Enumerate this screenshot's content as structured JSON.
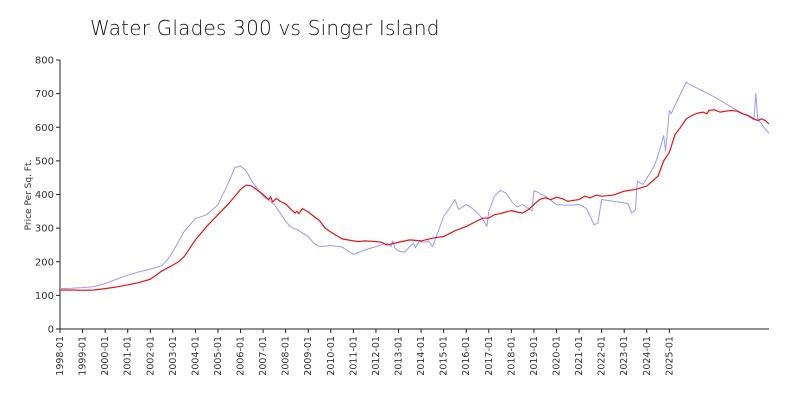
{
  "chart_data": {
    "type": "line",
    "title": "Water Glades 300 vs Singer Island",
    "xlabel": "",
    "ylabel": "Price Per Sq. Ft.",
    "ylim": [
      0,
      800
    ],
    "yticks": [
      0,
      100,
      200,
      300,
      400,
      500,
      600,
      700,
      800
    ],
    "xticks": [
      "1998-01",
      "1999-01",
      "2000-01",
      "2001-01",
      "2002-01",
      "2003-01",
      "2004-01",
      "2005-01",
      "2006-01",
      "2007-01",
      "2008-01",
      "2009-01",
      "2010-01",
      "2011-01",
      "2012-01",
      "2013-01",
      "2014-01",
      "2015-01",
      "2016-01",
      "2017-01",
      "2018-01",
      "2019-01",
      "2020-01",
      "2021-01",
      "2022-01",
      "2023-01",
      "2024-01",
      "2025-01"
    ],
    "grid": false,
    "series": [
      {
        "color": "#9999ff",
        "points": [
          [
            "1998-01",
            120
          ],
          [
            "1998-07",
            121
          ],
          [
            "1999-01",
            123
          ],
          [
            "1999-07",
            126
          ],
          [
            "2000-01",
            135
          ],
          [
            "2000-07",
            148
          ],
          [
            "2001-01",
            160
          ],
          [
            "2001-07",
            170
          ],
          [
            "2002-01",
            178
          ],
          [
            "2002-07",
            188
          ],
          [
            "2002-10",
            205
          ],
          [
            "2003-01",
            230
          ],
          [
            "2003-07",
            290
          ],
          [
            "2004-01",
            328
          ],
          [
            "2004-07",
            340
          ],
          [
            "2005-01",
            370
          ],
          [
            "2005-07",
            440
          ],
          [
            "2005-10",
            480
          ],
          [
            "2006-01",
            485
          ],
          [
            "2006-04",
            470
          ],
          [
            "2006-07",
            440
          ],
          [
            "2007-01",
            395
          ],
          [
            "2007-07",
            370
          ],
          [
            "2008-01",
            320
          ],
          [
            "2008-04",
            302
          ],
          [
            "2008-07",
            296
          ],
          [
            "2009-01",
            275
          ],
          [
            "2009-04",
            255
          ],
          [
            "2009-07",
            245
          ],
          [
            "2010-01",
            248
          ],
          [
            "2010-07",
            244
          ],
          [
            "2010-10",
            232
          ],
          [
            "2011-01",
            222
          ],
          [
            "2011-07",
            235
          ],
          [
            "2012-01",
            245
          ],
          [
            "2012-07",
            255
          ],
          [
            "2012-09",
            245
          ],
          [
            "2012-10",
            262
          ],
          [
            "2012-11",
            242
          ],
          [
            "2013-01",
            232
          ],
          [
            "2013-04",
            228
          ],
          [
            "2013-07",
            245
          ],
          [
            "2013-09",
            255
          ],
          [
            "2013-10",
            242
          ],
          [
            "2013-12",
            260
          ],
          [
            "2014-03",
            258
          ],
          [
            "2014-05",
            262
          ],
          [
            "2014-07",
            245
          ],
          [
            "2014-08",
            258
          ],
          [
            "2015-01",
            335
          ],
          [
            "2015-04",
            358
          ],
          [
            "2015-07",
            385
          ],
          [
            "2015-09",
            355
          ],
          [
            "2016-01",
            370
          ],
          [
            "2016-04",
            360
          ],
          [
            "2016-07",
            345
          ],
          [
            "2016-10",
            325
          ],
          [
            "2016-12",
            305
          ],
          [
            "2017-01",
            350
          ],
          [
            "2017-04",
            395
          ],
          [
            "2017-07",
            412
          ],
          [
            "2017-10",
            405
          ],
          [
            "2018-01",
            380
          ],
          [
            "2018-04",
            363
          ],
          [
            "2018-07",
            370
          ],
          [
            "2018-10",
            358
          ],
          [
            "2018-12",
            352
          ],
          [
            "2019-01",
            412
          ],
          [
            "2019-07",
            395
          ],
          [
            "2019-10",
            382
          ],
          [
            "2020-01",
            370
          ],
          [
            "2020-07",
            368
          ],
          [
            "2021-01",
            370
          ],
          [
            "2021-05",
            358
          ],
          [
            "2021-09",
            310
          ],
          [
            "2021-11",
            315
          ],
          [
            "2022-01",
            385
          ],
          [
            "2022-07",
            380
          ],
          [
            "2023-01",
            375
          ],
          [
            "2023-03",
            372
          ],
          [
            "2023-05",
            345
          ],
          [
            "2023-07",
            355
          ],
          [
            "2023-08",
            440
          ],
          [
            "2023-11",
            430
          ],
          [
            "2024-04",
            475
          ],
          [
            "2024-06",
            500
          ],
          [
            "2024-08",
            535
          ],
          [
            "2024-10",
            575
          ],
          [
            "2024-11",
            530
          ],
          [
            "2025-01",
            650
          ],
          [
            "2025-02",
            640
          ],
          [
            "2025-04",
            665
          ],
          [
            "2025-07",
            700
          ],
          [
            "2025-10",
            735
          ],
          [
            "2025-11",
            730
          ],
          [
            "2026-06",
            710
          ],
          [
            "2027-01",
            690
          ],
          [
            "2027-07",
            670
          ],
          [
            "2028-01",
            650
          ],
          [
            "2028-07",
            632
          ],
          [
            "2028-10",
            622
          ],
          [
            "2028-11",
            700
          ],
          [
            "2028-12",
            625
          ],
          [
            "2029-02",
            610
          ],
          [
            "2029-04",
            595
          ],
          [
            "2029-06",
            582
          ]
        ]
      },
      {
        "color": "#ee1111",
        "points": [
          [
            "1998-01",
            116
          ],
          [
            "1998-07",
            116
          ],
          [
            "1999-01",
            115
          ],
          [
            "1999-07",
            116
          ],
          [
            "2000-01",
            120
          ],
          [
            "2000-07",
            125
          ],
          [
            "2001-01",
            131
          ],
          [
            "2001-07",
            138
          ],
          [
            "2002-01",
            148
          ],
          [
            "2002-04",
            160
          ],
          [
            "2002-07",
            172
          ],
          [
            "2003-01",
            190
          ],
          [
            "2003-04",
            200
          ],
          [
            "2003-07",
            215
          ],
          [
            "2003-10",
            240
          ],
          [
            "2004-01",
            265
          ],
          [
            "2004-07",
            305
          ],
          [
            "2005-01",
            340
          ],
          [
            "2005-07",
            375
          ],
          [
            "2006-01",
            415
          ],
          [
            "2006-04",
            428
          ],
          [
            "2006-07",
            425
          ],
          [
            "2007-01",
            400
          ],
          [
            "2007-04",
            385
          ],
          [
            "2007-05",
            393
          ],
          [
            "2007-06",
            378
          ],
          [
            "2007-08",
            388
          ],
          [
            "2007-10",
            380
          ],
          [
            "2008-01",
            372
          ],
          [
            "2008-04",
            355
          ],
          [
            "2008-06",
            345
          ],
          [
            "2008-07",
            350
          ],
          [
            "2008-08",
            343
          ],
          [
            "2008-10",
            358
          ],
          [
            "2009-01",
            348
          ],
          [
            "2009-04",
            335
          ],
          [
            "2009-07",
            322
          ],
          [
            "2009-10",
            300
          ],
          [
            "2010-01",
            288
          ],
          [
            "2010-07",
            268
          ],
          [
            "2011-01",
            262
          ],
          [
            "2011-04",
            260
          ],
          [
            "2011-07",
            262
          ],
          [
            "2012-01",
            260
          ],
          [
            "2012-04",
            258
          ],
          [
            "2012-06",
            252
          ],
          [
            "2012-07",
            250
          ],
          [
            "2013-01",
            258
          ],
          [
            "2013-07",
            265
          ],
          [
            "2014-01",
            262
          ],
          [
            "2014-07",
            270
          ],
          [
            "2015-01",
            275
          ],
          [
            "2015-07",
            292
          ],
          [
            "2016-01",
            305
          ],
          [
            "2016-07",
            322
          ],
          [
            "2016-10",
            330
          ],
          [
            "2017-01",
            330
          ],
          [
            "2017-04",
            340
          ],
          [
            "2017-07",
            343
          ],
          [
            "2017-10",
            348
          ],
          [
            "2018-01",
            352
          ],
          [
            "2018-04",
            348
          ],
          [
            "2018-07",
            345
          ],
          [
            "2018-10",
            355
          ],
          [
            "2019-01",
            370
          ],
          [
            "2019-04",
            385
          ],
          [
            "2019-07",
            390
          ],
          [
            "2019-10",
            385
          ],
          [
            "2020-01",
            392
          ],
          [
            "2020-04",
            388
          ],
          [
            "2020-07",
            380
          ],
          [
            "2021-01",
            385
          ],
          [
            "2021-04",
            395
          ],
          [
            "2021-07",
            390
          ],
          [
            "2021-10",
            398
          ],
          [
            "2022-01",
            395
          ],
          [
            "2022-07",
            398
          ],
          [
            "2023-01",
            410
          ],
          [
            "2023-07",
            415
          ],
          [
            "2024-01",
            425
          ],
          [
            "2024-04",
            440
          ],
          [
            "2024-07",
            455
          ],
          [
            "2024-10",
            500
          ],
          [
            "2025-01",
            525
          ],
          [
            "2025-04",
            578
          ],
          [
            "2025-07",
            600
          ],
          [
            "2025-10",
            625
          ],
          [
            "2026-01",
            635
          ],
          [
            "2026-04",
            642
          ],
          [
            "2026-07",
            645
          ],
          [
            "2026-09",
            640
          ],
          [
            "2026-10",
            650
          ],
          [
            "2027-01",
            652
          ],
          [
            "2027-04",
            645
          ],
          [
            "2027-07",
            648
          ],
          [
            "2027-10",
            650
          ],
          [
            "2028-01",
            648
          ],
          [
            "2028-04",
            640
          ],
          [
            "2028-07",
            635
          ],
          [
            "2028-10",
            625
          ],
          [
            "2028-12",
            620
          ],
          [
            "2029-02",
            625
          ],
          [
            "2029-04",
            620
          ],
          [
            "2029-06",
            610
          ]
        ]
      }
    ]
  }
}
